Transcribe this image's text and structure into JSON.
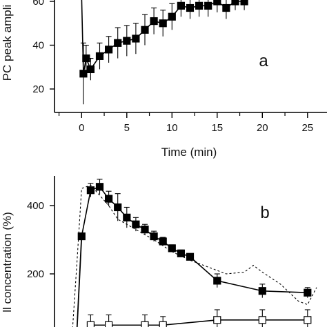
{
  "chart_data": [
    {
      "type": "line",
      "panel_label": "a",
      "xlabel": "Time (min)",
      "ylabel": "PC peak ampli",
      "xlim": [
        -3,
        27
      ],
      "ylim": [
        10,
        72
      ],
      "x_ticks": [
        0,
        5,
        10,
        15,
        20,
        25
      ],
      "y_ticks": [
        20,
        40,
        60
      ],
      "x_tick_labels": [
        "0",
        "5",
        "10",
        "15",
        "20",
        "25"
      ],
      "y_tick_labels": [
        "20",
        "40",
        "60"
      ],
      "grid": false,
      "series": [
        {
          "marker": "filled-square",
          "color": "#000000",
          "points": [
            {
              "x": 0.2,
              "y": 27,
              "err": 14
            },
            {
              "x": 0.5,
              "y": 34,
              "err": 6
            },
            {
              "x": 1.0,
              "y": 29,
              "err": 5
            },
            {
              "x": 2.0,
              "y": 35,
              "err": 6
            },
            {
              "x": 3.0,
              "y": 38,
              "err": 6
            },
            {
              "x": 4.0,
              "y": 41,
              "err": 7
            },
            {
              "x": 5.0,
              "y": 42,
              "err": 7
            },
            {
              "x": 6.0,
              "y": 43,
              "err": 7
            },
            {
              "x": 7.0,
              "y": 47,
              "err": 7
            },
            {
              "x": 8.0,
              "y": 51,
              "err": 6
            },
            {
              "x": 9.0,
              "y": 50,
              "err": 6
            },
            {
              "x": 10.0,
              "y": 53,
              "err": 6
            },
            {
              "x": 11.0,
              "y": 58,
              "err": 5
            },
            {
              "x": 12.0,
              "y": 57,
              "err": 5
            },
            {
              "x": 13.0,
              "y": 58,
              "err": 5
            },
            {
              "x": 14.0,
              "y": 58,
              "err": 5
            },
            {
              "x": 15.0,
              "y": 60,
              "err": 5
            },
            {
              "x": 16.0,
              "y": 57,
              "err": 5
            },
            {
              "x": 17.0,
              "y": 60,
              "err": 4
            },
            {
              "x": 18.0,
              "y": 60,
              "err": 4
            }
          ]
        }
      ]
    },
    {
      "type": "line",
      "panel_label": "b",
      "xlabel": "",
      "ylabel": "ll concentration (%)",
      "xlim": [
        -3,
        27
      ],
      "ylim": [
        40,
        500
      ],
      "y_ticks": [
        200,
        400
      ],
      "y_tick_labels": [
        "200",
        "400"
      ],
      "grid": false,
      "series": [
        {
          "marker": "filled-square",
          "line": "solid",
          "color": "#000000",
          "points": [
            {
              "x": 0.0,
              "y": 310,
              "err": 0
            },
            {
              "x": 1.0,
              "y": 445,
              "err": 20
            },
            {
              "x": 2.0,
              "y": 455,
              "err": 22
            },
            {
              "x": 3.0,
              "y": 420,
              "err": 22
            },
            {
              "x": 4.0,
              "y": 395,
              "err": 40
            },
            {
              "x": 5.0,
              "y": 365,
              "err": 30
            },
            {
              "x": 6.0,
              "y": 345,
              "err": 20
            },
            {
              "x": 7.0,
              "y": 330,
              "err": 15
            },
            {
              "x": 8.0,
              "y": 310,
              "err": 15
            },
            {
              "x": 9.0,
              "y": 295,
              "err": 12
            },
            {
              "x": 10.0,
              "y": 275,
              "err": 10
            },
            {
              "x": 11.0,
              "y": 260,
              "err": 10
            },
            {
              "x": 12.0,
              "y": 250,
              "err": 8
            },
            {
              "x": 15.0,
              "y": 180,
              "err": 20
            },
            {
              "x": 20.0,
              "y": 150,
              "err": 20
            },
            {
              "x": 25.0,
              "y": 145,
              "err": 15
            }
          ]
        },
        {
          "marker": "open-square",
          "line": "solid",
          "color": "#000000",
          "points": [
            {
              "x": 1.0,
              "y": 50,
              "err": 30
            },
            {
              "x": 3.0,
              "y": 50,
              "err": 30
            },
            {
              "x": 7.0,
              "y": 50,
              "err": 30
            },
            {
              "x": 9.0,
              "y": 50,
              "err": 25
            },
            {
              "x": 15.0,
              "y": 65,
              "err": 30
            },
            {
              "x": 20.0,
              "y": 65,
              "err": 30
            },
            {
              "x": 25.0,
              "y": 65,
              "err": 30
            }
          ]
        },
        {
          "marker": "none",
          "line": "dashed",
          "color": "#000000",
          "points": [
            {
              "x": -1.0,
              "y": 40
            },
            {
              "x": -0.5,
              "y": 240
            },
            {
              "x": 0.0,
              "y": 450
            },
            {
              "x": 1.0,
              "y": 460
            },
            {
              "x": 2.0,
              "y": 430
            },
            {
              "x": 3.0,
              "y": 400
            },
            {
              "x": 4.0,
              "y": 360
            },
            {
              "x": 6.0,
              "y": 330
            },
            {
              "x": 8.0,
              "y": 300
            },
            {
              "x": 10.0,
              "y": 265
            },
            {
              "x": 12.0,
              "y": 240
            },
            {
              "x": 14.0,
              "y": 220
            },
            {
              "x": 16.0,
              "y": 200
            },
            {
              "x": 18.0,
              "y": 205
            },
            {
              "x": 19.0,
              "y": 225
            },
            {
              "x": 20.0,
              "y": 205
            },
            {
              "x": 22.0,
              "y": 170
            },
            {
              "x": 24.0,
              "y": 120
            },
            {
              "x": 25.0,
              "y": 110
            },
            {
              "x": 26.0,
              "y": 160
            }
          ]
        }
      ]
    }
  ]
}
